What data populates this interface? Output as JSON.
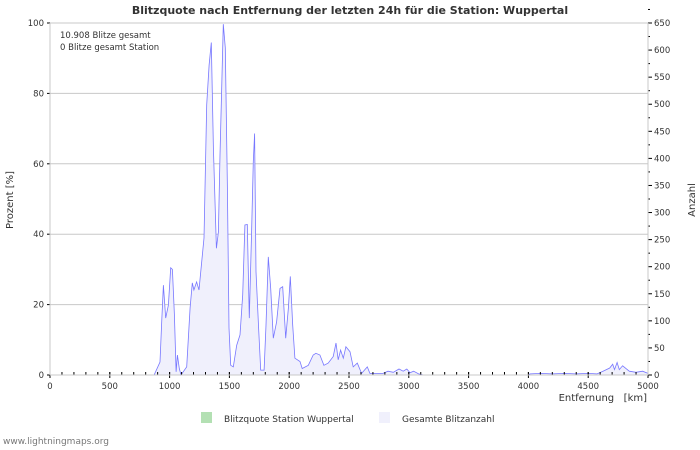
{
  "chart_data": {
    "type": "area",
    "title": "Blitzquote nach Entfernung der letzten 24h für die Station: Wuppertal",
    "xlabel": "Entfernung   [km]",
    "ylabel": "Prozent   [%]",
    "y2label": "Anzahl",
    "xlim": [
      0,
      5000
    ],
    "ylim": [
      0,
      100
    ],
    "y2lim": [
      0,
      650
    ],
    "xticks": [
      0,
      500,
      1000,
      1500,
      2000,
      2500,
      3000,
      3500,
      4000,
      4500,
      5000
    ],
    "yticks": [
      0,
      20,
      40,
      60,
      80,
      100
    ],
    "y2ticks": [
      0,
      50,
      100,
      150,
      200,
      250,
      300,
      350,
      400,
      450,
      500,
      550,
      600,
      650
    ],
    "grid": true,
    "annotations": [
      "10.908 Blitze gesamt",
      "0 Blitze gesamt Station"
    ],
    "legend_position": "bottom",
    "series": [
      {
        "name": "Blitzquote Station Wuppertal",
        "axis": "left",
        "color": "#b3e0b3",
        "x": [],
        "values": []
      },
      {
        "name": "Gesamte Blitzanzahl",
        "axis": "right",
        "color": "#7777ff",
        "fill": "#f0f0fc",
        "x": [
          0,
          870,
          920,
          934,
          948,
          967,
          990,
          1009,
          1023,
          1040,
          1054,
          1065,
          1081,
          1095,
          1143,
          1171,
          1190,
          1203,
          1226,
          1246,
          1268,
          1288,
          1310,
          1330,
          1349,
          1366,
          1391,
          1408,
          1421,
          1435,
          1449,
          1466,
          1483,
          1497,
          1511,
          1533,
          1561,
          1589,
          1611,
          1630,
          1650,
          1666,
          1686,
          1700,
          1711,
          1722,
          1744,
          1762,
          1790,
          1806,
          1825,
          1845,
          1867,
          1895,
          1923,
          1946,
          1971,
          1993,
          2009,
          2029,
          2048,
          2090,
          2109,
          2160,
          2201,
          2223,
          2257,
          2290,
          2326,
          2368,
          2391,
          2410,
          2430,
          2452,
          2474,
          2508,
          2535,
          2569,
          2605,
          2653,
          2675,
          2716,
          2785,
          2826,
          2870,
          2918,
          2953,
          2983,
          3010,
          3040,
          3082,
          3124,
          4000,
          4013,
          4100,
          4200,
          4300,
          4400,
          4500,
          4574,
          4624,
          4680,
          4705,
          4720,
          4742,
          4760,
          4788,
          4844,
          4900,
          4955,
          5000
        ],
        "values": [
          0,
          0,
          24,
          98,
          166,
          105,
          129,
          198,
          195,
          111,
          6,
          37,
          12,
          0,
          15,
          124,
          170,
          157,
          172,
          157,
          209,
          253,
          499,
          572,
          614,
          419,
          234,
          264,
          406,
          523,
          648,
          604,
          345,
          87,
          18,
          15,
          55,
          74,
          148,
          277,
          278,
          105,
          265,
          394,
          446,
          191,
          87,
          9,
          9,
          92,
          218,
          160,
          68,
          98,
          160,
          163,
          68,
          124,
          182,
          92,
          31,
          25,
          12,
          18,
          37,
          40,
          37,
          18,
          22,
          34,
          59,
          28,
          46,
          31,
          52,
          43,
          15,
          22,
          3,
          15,
          3,
          3,
          3,
          7,
          5,
          11,
          7,
          11,
          4,
          7,
          2,
          0,
          0,
          2,
          3,
          2,
          3,
          2,
          3,
          2,
          7,
          13,
          20,
          10,
          23,
          10,
          17,
          7,
          5,
          7,
          3
        ]
      }
    ]
  },
  "footer": "www.lightningmaps.org"
}
